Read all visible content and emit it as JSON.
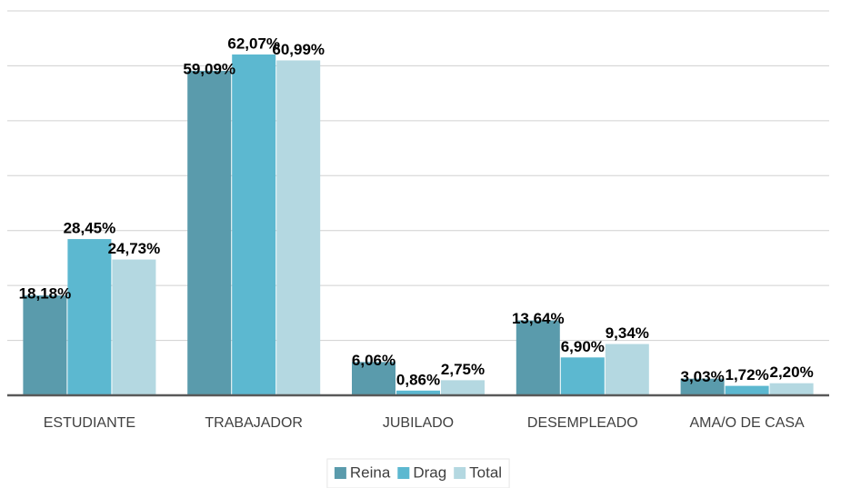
{
  "chart_data": {
    "type": "bar",
    "categories": [
      "ESTUDIANTE",
      "TRABAJADOR",
      "JUBILADO",
      "DESEMPLEADO",
      "AMA/O DE CASA"
    ],
    "series": [
      {
        "name": "Reina",
        "color": "#5a9bac",
        "values": [
          18.18,
          59.09,
          6.06,
          13.64,
          3.03
        ],
        "value_labels": [
          "18,18%",
          "59,09%",
          "6,06%",
          "13,64%",
          "3,03%"
        ]
      },
      {
        "name": "Drag",
        "color": "#5cb8d0",
        "values": [
          28.45,
          62.07,
          0.86,
          6.9,
          1.72
        ],
        "value_labels": [
          "28,45%",
          "62,07%",
          "0,86%",
          "6,90%",
          "1,72%"
        ]
      },
      {
        "name": "Total",
        "color": "#b4d8e1",
        "values": [
          24.73,
          60.99,
          2.75,
          9.34,
          2.2
        ],
        "value_labels": [
          "24,73%",
          "60,99%",
          "2,75%",
          "9,34%",
          "2,20%"
        ]
      }
    ],
    "ylim": [
      0,
      70
    ],
    "yticks": [
      0,
      10,
      20,
      30,
      40,
      50,
      60,
      70
    ],
    "grid": true,
    "legend": "bottom"
  }
}
